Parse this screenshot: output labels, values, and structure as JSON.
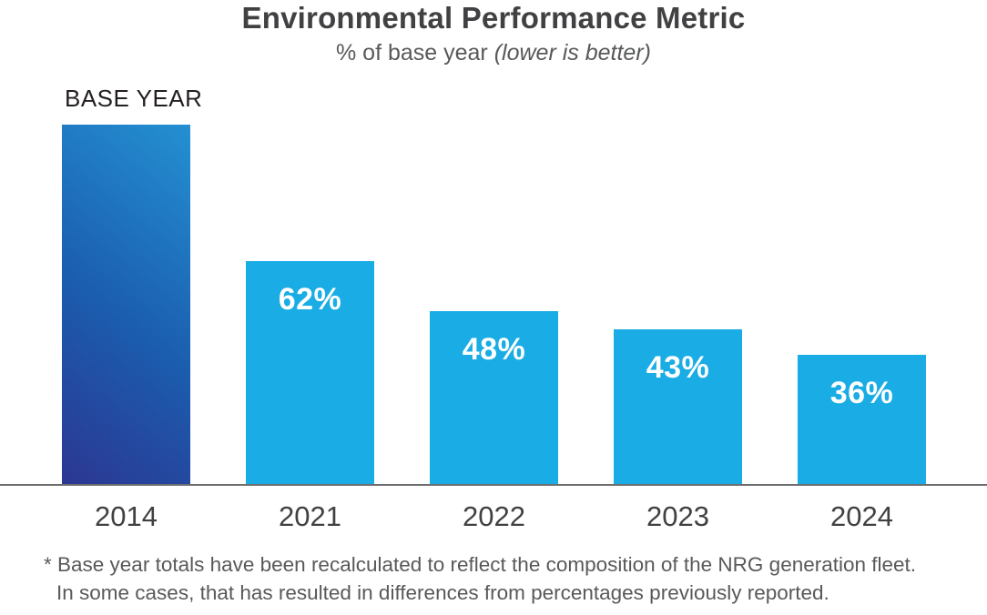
{
  "header": {
    "title": "Environmental Performance Metric",
    "subtitle_plain": "% of base year ",
    "subtitle_italic": "(lower is better)"
  },
  "chart_data": {
    "type": "bar",
    "title": "Environmental Performance Metric",
    "subtitle": "% of base year (lower is better)",
    "categories": [
      "2014",
      "2021",
      "2022",
      "2023",
      "2024"
    ],
    "values": [
      100,
      62,
      48,
      43,
      36
    ],
    "bar_labels": [
      "",
      "62%",
      "48%",
      "43%",
      "36%"
    ],
    "base_year_annotation": "BASE YEAR",
    "ylabel": "% of base year",
    "ylim": [
      0,
      100
    ],
    "grid": "off",
    "legend": "none",
    "colors": {
      "bar": "#1aace4",
      "base_bar_gradient_top": "#2490d2",
      "base_bar_gradient_mid": "#1b5cae",
      "base_bar_gradient_bottom": "#2c3792",
      "axis": "#6d6e71",
      "bar_label_text": "#ffffff",
      "title_text": "#414042",
      "subtitle_text": "#58595b"
    }
  },
  "footnote": {
    "line1": "* Base year totals have been recalculated to reflect the composition of the NRG generation fleet.",
    "line2": "In some cases, that has resulted in differences from percentages previously reported."
  }
}
